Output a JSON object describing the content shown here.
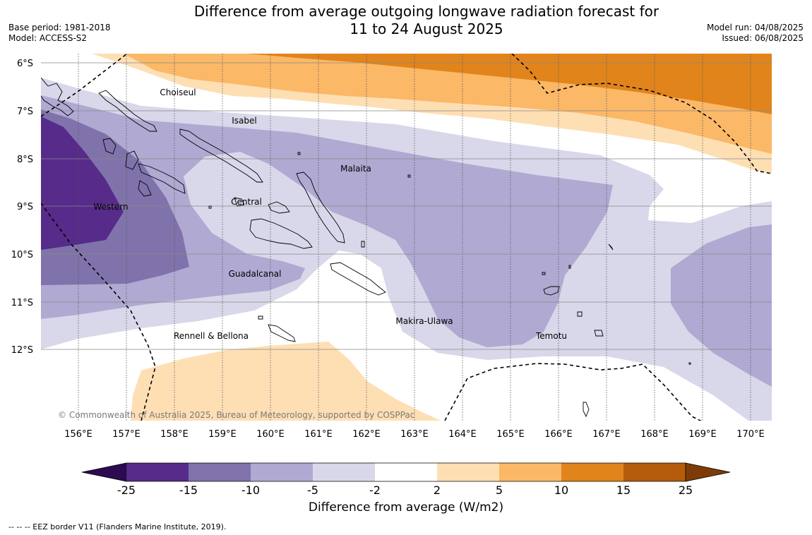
{
  "header": {
    "title_line1": "Difference from average outgoing longwave radiation forecast for",
    "title_line2": "11 to 24 August 2025",
    "base_period": "Base period: 1981-2018",
    "model": "Model: ACCESS-S2",
    "model_run": "Model run: 04/08/2025",
    "issued": "Issued: 06/08/2025"
  },
  "map": {
    "lat_labels": [
      "6°S",
      "7°S",
      "8°S",
      "9°S",
      "10°S",
      "11°S",
      "12°S"
    ],
    "lon_labels": [
      "156°E",
      "157°E",
      "158°E",
      "159°E",
      "160°E",
      "161°E",
      "162°E",
      "163°E",
      "164°E",
      "165°E",
      "166°E",
      "167°E",
      "168°E",
      "169°E",
      "170°E"
    ],
    "regions": [
      "Choiseul",
      "Isabel",
      "Malaita",
      "Western",
      "Central",
      "Guadalcanal",
      "Makira-Ulawa",
      "Rennell & Bellona",
      "Temotu"
    ],
    "copyright": "© Commonwealth of Australia 2025, Bureau of Meteorology, supported by COSPPac"
  },
  "colorbar": {
    "ticks": [
      "-25",
      "-15",
      "-10",
      "-5",
      "-2",
      "2",
      "5",
      "10",
      "15",
      "25"
    ],
    "colors": [
      "#2c0b52",
      "#562b8a",
      "#8073ab",
      "#b0a9d2",
      "#d8d8ea",
      "#ffffff",
      "#fedfb4",
      "#fbb867",
      "#e1841c",
      "#b45b0c",
      "#7d3c07"
    ],
    "title": "Difference from average (W/m2)"
  },
  "footer": {
    "eez_note": "--  --  -- EEZ border V11 (Flanders Marine Institute, 2019)."
  }
}
